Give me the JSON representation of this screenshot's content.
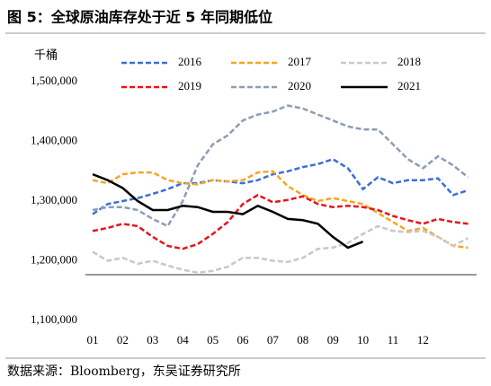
{
  "chart_data": {
    "type": "line",
    "title": "图 5：全球原油库存处于近 5 年同期低位",
    "y_axis_label": "千桶",
    "source": "数据来源：Bloomberg，东吴证券研究所",
    "categories": [
      "01",
      null,
      "02",
      null,
      "03",
      null,
      "04",
      null,
      "05",
      null,
      "06",
      null,
      "07",
      null,
      "08",
      null,
      "09",
      null,
      "10",
      null,
      "11",
      null,
      "12",
      null,
      null,
      null
    ],
    "ylim": [
      1100000,
      1500000
    ],
    "yticks": [
      {
        "value": 1100000,
        "label": "1,100,000"
      },
      {
        "value": 1200000,
        "label": "1,200,000"
      },
      {
        "value": 1300000,
        "label": "1,300,000"
      },
      {
        "value": 1400000,
        "label": "1,400,000"
      },
      {
        "value": 1500000,
        "label": "1,500,000"
      }
    ],
    "grid": false,
    "series": [
      {
        "name": "2016",
        "color": "#3a6fd8",
        "dash": true,
        "values": [
          1278000,
          1295000,
          1300000,
          1305000,
          1312000,
          1320000,
          1330000,
          1330000,
          1335000,
          1333000,
          1330000,
          1335000,
          1345000,
          1350000,
          1357000,
          1362000,
          1370000,
          1355000,
          1320000,
          1340000,
          1330000,
          1335000,
          1335000,
          1338000,
          1310000,
          1318000
        ]
      },
      {
        "name": "2017",
        "color": "#f5a623",
        "dash": true,
        "values": [
          1335000,
          1330000,
          1345000,
          1348000,
          1348000,
          1335000,
          1330000,
          1328000,
          1335000,
          1333000,
          1335000,
          1348000,
          1350000,
          1325000,
          1310000,
          1300000,
          1305000,
          1300000,
          1295000,
          1280000,
          1265000,
          1250000,
          1255000,
          1240000,
          1225000,
          1222000
        ]
      },
      {
        "name": "2018",
        "color": "#c8c8c8",
        "dash": true,
        "values": [
          1215000,
          1200000,
          1205000,
          1195000,
          1200000,
          1192000,
          1185000,
          1180000,
          1183000,
          1190000,
          1205000,
          1205000,
          1200000,
          1198000,
          1205000,
          1220000,
          1222000,
          1230000,
          1245000,
          1258000,
          1250000,
          1248000,
          1250000,
          1240000,
          1225000,
          1238000
        ]
      },
      {
        "name": "2019",
        "color": "#e6141e",
        "dash": true,
        "values": [
          1250000,
          1255000,
          1262000,
          1258000,
          1240000,
          1225000,
          1220000,
          1228000,
          1245000,
          1265000,
          1295000,
          1310000,
          1298000,
          1302000,
          1308000,
          1295000,
          1290000,
          1292000,
          1290000,
          1285000,
          1275000,
          1268000,
          1262000,
          1270000,
          1265000,
          1262000
        ]
      },
      {
        "name": "2020",
        "color": "#8c9db5",
        "dash": true,
        "values": [
          1285000,
          1290000,
          1290000,
          1285000,
          1270000,
          1258000,
          1300000,
          1360000,
          1395000,
          1410000,
          1435000,
          1445000,
          1450000,
          1460000,
          1455000,
          1445000,
          1435000,
          1425000,
          1420000,
          1420000,
          1395000,
          1370000,
          1355000,
          1375000,
          1360000,
          1340000
        ]
      },
      {
        "name": "2021",
        "color": "#000000",
        "dash": false,
        "values": [
          1345000,
          1335000,
          1322000,
          1300000,
          1285000,
          1285000,
          1292000,
          1290000,
          1282000,
          1282000,
          1278000,
          1292000,
          1282000,
          1270000,
          1268000,
          1262000,
          1240000,
          1222000,
          1232000,
          null,
          null,
          null,
          null,
          null,
          null,
          null
        ]
      }
    ]
  }
}
